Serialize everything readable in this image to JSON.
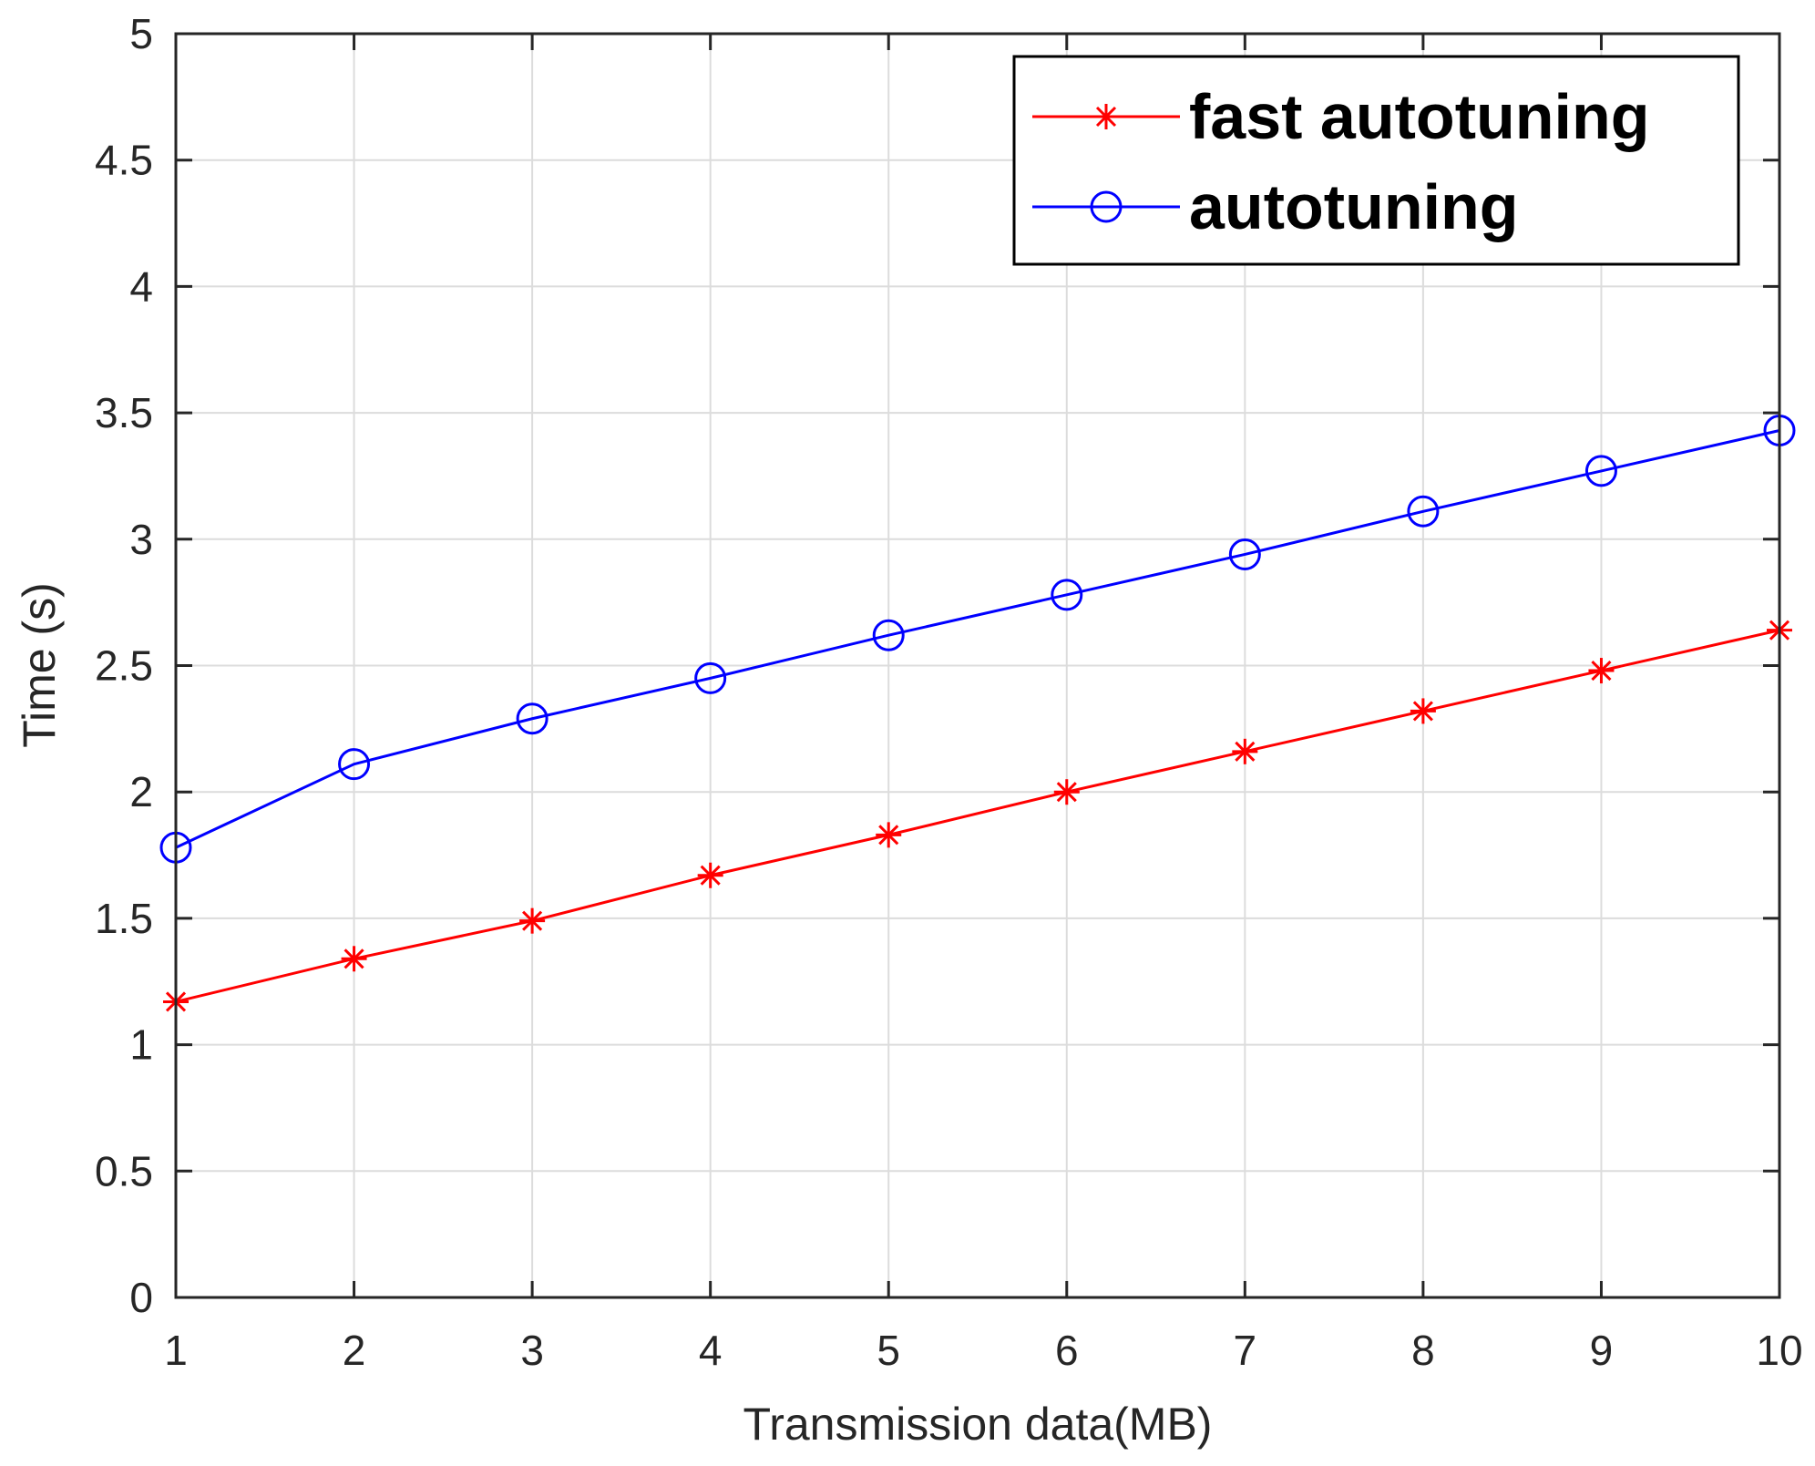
{
  "chart_data": {
    "type": "line",
    "title": "",
    "xlabel": "Transmission data(MB)",
    "ylabel": "Time (s)",
    "xlim": [
      1,
      10
    ],
    "ylim": [
      0,
      5
    ],
    "grid": true,
    "legend_position": "top-right",
    "x_ticks": [
      "1",
      "2",
      "3",
      "4",
      "5",
      "6",
      "7",
      "8",
      "9",
      "10"
    ],
    "y_ticks": [
      "0",
      "0.5",
      "1",
      "1.5",
      "2",
      "2.5",
      "3",
      "3.5",
      "4",
      "4.5",
      "5"
    ],
    "x": [
      1,
      2,
      3,
      4,
      5,
      6,
      7,
      8,
      9,
      10
    ],
    "series": [
      {
        "name": "fast autotuning",
        "color": "#ff0000",
        "marker": "asterisk",
        "values": [
          1.17,
          1.34,
          1.49,
          1.67,
          1.83,
          2.0,
          2.16,
          2.32,
          2.48,
          2.64
        ]
      },
      {
        "name": "autotuning",
        "color": "#0000ff",
        "marker": "circle",
        "values": [
          1.78,
          2.11,
          2.29,
          2.45,
          2.62,
          2.78,
          2.94,
          3.11,
          3.27,
          3.43
        ]
      }
    ]
  }
}
